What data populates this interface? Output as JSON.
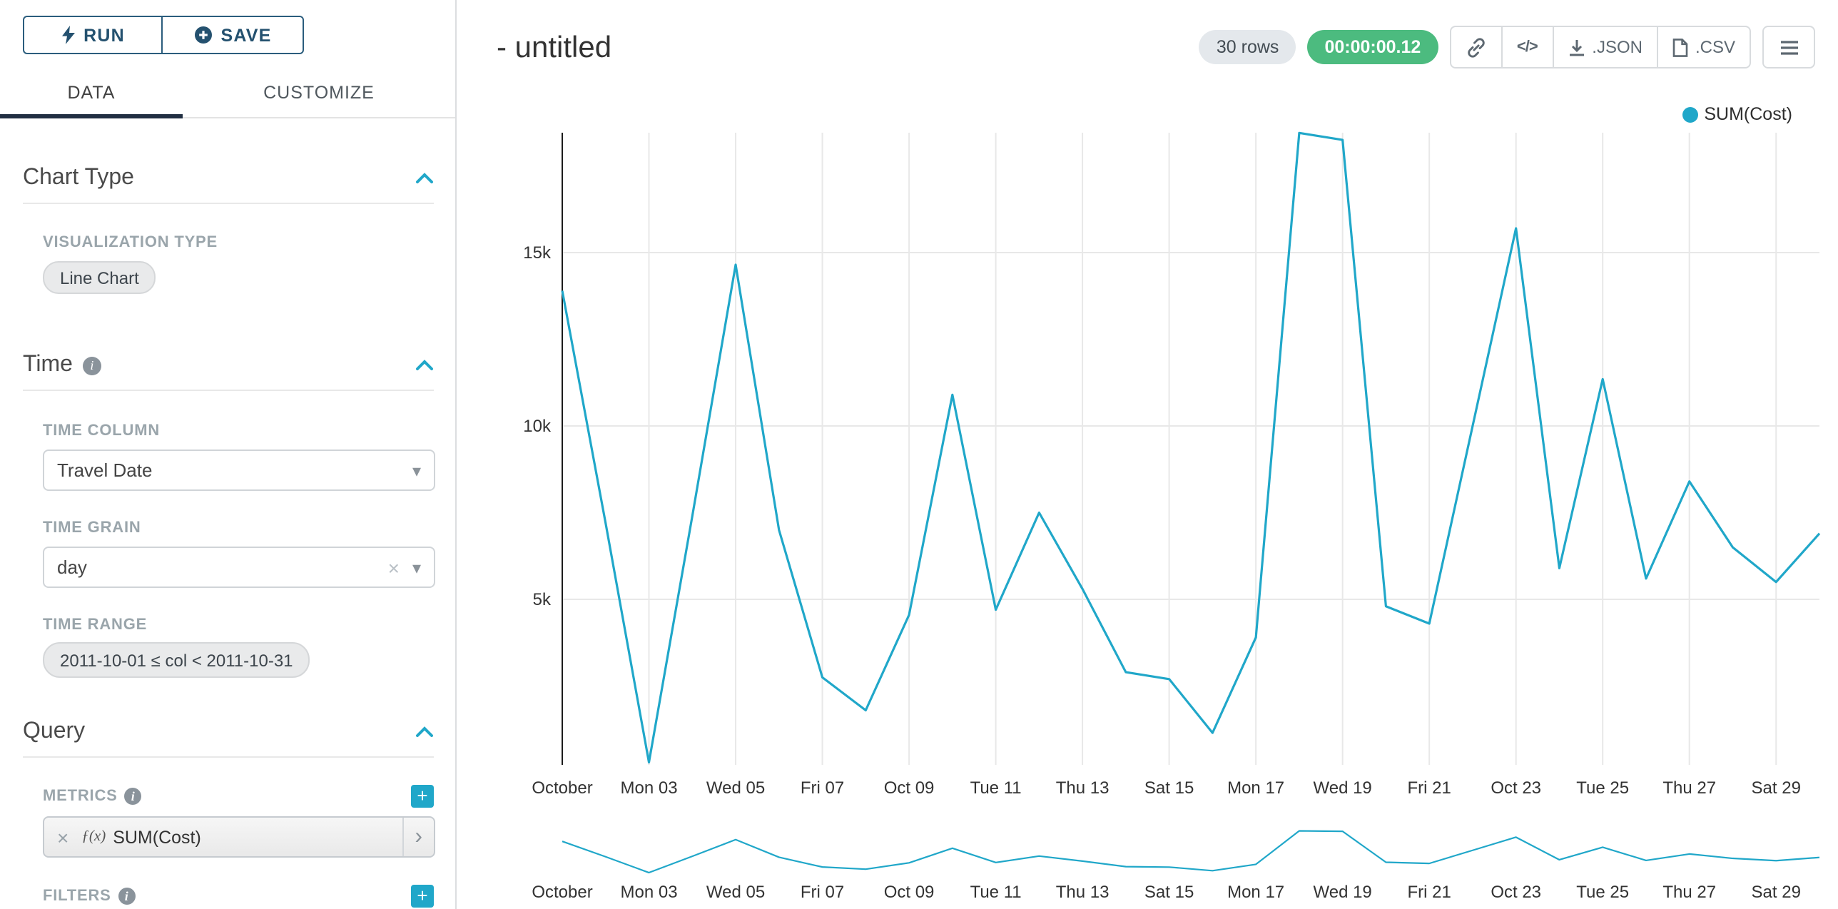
{
  "colors": {
    "line": "#20A7C9",
    "accent": "#20A7C9",
    "timer_badge_bg": "#4CBB7F",
    "tab_underline": "#212F43",
    "run_save_blue": "#2B5D7D"
  },
  "toolbar": {
    "run_label": "RUN",
    "save_label": "SAVE"
  },
  "tabs": {
    "data": "DATA",
    "customize": "CUSTOMIZE"
  },
  "panel": {
    "chart_type": {
      "title": "Chart Type",
      "viz_type_label": "VISUALIZATION TYPE",
      "viz_type_value": "Line Chart"
    },
    "time": {
      "title": "Time",
      "time_column_label": "TIME COLUMN",
      "time_column_value": "Travel Date",
      "time_grain_label": "TIME GRAIN",
      "time_grain_value": "day",
      "time_range_label": "TIME RANGE",
      "time_range_value": "2011-10-01 ≤ col < 2011-10-31"
    },
    "query": {
      "title": "Query",
      "metrics_label": "METRICS",
      "metric_fx": "ƒ(x)",
      "metric_value": "SUM(Cost)",
      "filters_label": "FILTERS"
    }
  },
  "header": {
    "title": "- untitled",
    "rows_badge": "30 rows",
    "timer_badge": "00:00:00.12",
    "code_icon_label": "</>",
    "export_json_label": ".JSON",
    "export_csv_label": ".CSV"
  },
  "legend": {
    "label": "SUM(Cost)"
  },
  "chart_data": {
    "type": "line",
    "title": "",
    "xlabel": "",
    "ylabel": "",
    "grid": true,
    "legend_position": "top-right",
    "has_mini_focus_chart": true,
    "ylim": [
      0,
      18600
    ],
    "x": [
      "2011-10-01",
      "2011-10-02",
      "2011-10-03",
      "2011-10-04",
      "2011-10-05",
      "2011-10-06",
      "2011-10-07",
      "2011-10-08",
      "2011-10-09",
      "2011-10-10",
      "2011-10-11",
      "2011-10-12",
      "2011-10-13",
      "2011-10-14",
      "2011-10-15",
      "2011-10-16",
      "2011-10-17",
      "2011-10-18",
      "2011-10-19",
      "2011-10-20",
      "2011-10-21",
      "2011-10-22",
      "2011-10-23",
      "2011-10-24",
      "2011-10-25",
      "2011-10-26",
      "2011-10-27",
      "2011-10-28",
      "2011-10-29",
      "2011-10-30"
    ],
    "series": [
      {
        "name": "SUM(Cost)",
        "values": [
          13900,
          7200,
          300,
          7400,
          14650,
          7000,
          2750,
          1800,
          4550,
          10900,
          4700,
          7500,
          5300,
          2900,
          2700,
          1150,
          3900,
          18450,
          18250,
          4800,
          4300,
          10000,
          15700,
          5900,
          11350,
          5600,
          8400,
          6500,
          5500,
          6900
        ]
      }
    ],
    "x_tick_days": [
      1,
      3,
      5,
      7,
      9,
      11,
      13,
      15,
      17,
      19,
      21,
      23,
      25,
      27,
      29
    ],
    "x_tick_labels": [
      "October",
      "Mon 03",
      "Wed 05",
      "Fri 07",
      "Oct 09",
      "Tue 11",
      "Thu 13",
      "Sat 15",
      "Mon 17",
      "Wed 19",
      "Fri 21",
      "Oct 23",
      "Tue 25",
      "Thu 27",
      "Sat 29"
    ],
    "y_ticks": [
      {
        "value": 5000,
        "label": "5k"
      },
      {
        "value": 10000,
        "label": "10k"
      },
      {
        "value": 15000,
        "label": "15k"
      }
    ]
  }
}
